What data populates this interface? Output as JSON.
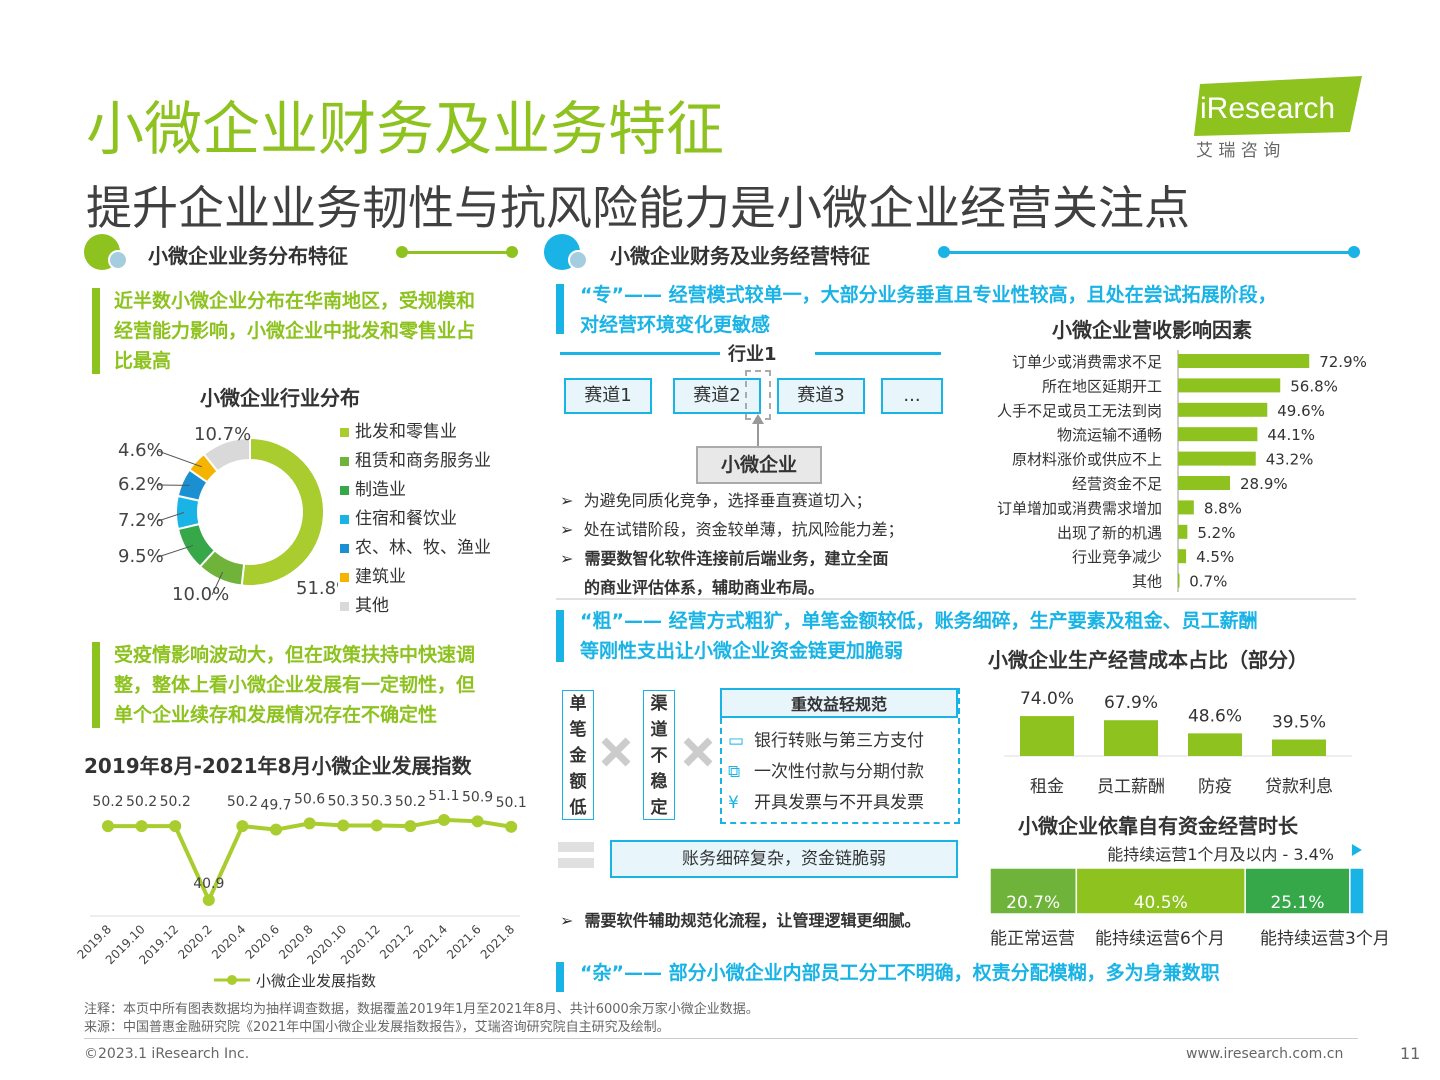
{
  "header": {
    "title": "小微企业财务及业务特征",
    "subtitle": "提升企业业务韧性与抗风险能力是小微企业经营关注点",
    "logo_text": "iResearch",
    "logo_cn": "艾 瑞 咨 询"
  },
  "left": {
    "section_title": "小微企业业务分布特征",
    "text1": [
      "近半数小微企业分布在华南地区，受规模和",
      "经营能力影响，小微企业中批发和零售业占",
      "比最高"
    ],
    "donut_title": "小微企业行业分布",
    "text2": [
      "受疫情影响波动大，但在政策扶持中快速调",
      "整，整体上看小微企业发展有一定韧性，但",
      "单个企业续存和发展情况存在不确定性"
    ],
    "line_title": "2019年8月-2021年8月小微企业发展指数"
  },
  "right": {
    "section_title": "小微企业财务及业务经营特征",
    "zhuan_text": [
      "“专”—— 经营模式较单一，大部分业务垂直且专业性较高，且处在尝试拓展阶段，",
      "对经营环境变化更敏感"
    ],
    "industry_label": "行业1",
    "tracks": [
      "赛道1",
      "赛道2",
      "赛道3",
      "..."
    ],
    "small_enterprise": "小微企业",
    "bullets1": [
      "为避免同质化竞争，选择垂直赛道切入；",
      "处在试错阶段，资金较单薄，抗风险能力差；",
      "需要数智化软件连接前后端业务，建立全面",
      "的商业评估体系，辅助商业布局。"
    ],
    "cu_text": [
      "“粗”—— 经营方式粗犷，单笔金额较低，账务细碎，生产要素及租金、员工薪酬",
      "等刚性支出让小微企业资金链更加脆弱"
    ],
    "vert1": [
      "单",
      "笔",
      "金",
      "额",
      "低"
    ],
    "vert2": [
      "渠",
      "道",
      "不",
      "稳",
      "定"
    ],
    "rule_title": "重效益轻规范",
    "rules": [
      "银行转账与第三方支付",
      "一次性付款与分期付款",
      "开具发票与不开具发票"
    ],
    "account_box": "账务细碎复杂，资金链脆弱",
    "bullet2": "需要软件辅助规范化流程，让管理逻辑更细腻。",
    "za_text": "“杂”—— 部分小微企业内部员工分工不明确，权责分配模糊，多为身兼数职"
  },
  "chart_data": [
    {
      "type": "pie",
      "title": "小微企业行业分布",
      "categories": [
        "批发和零售业",
        "租赁和商务服务业",
        "制造业",
        "住宿和餐饮业",
        "农、林、牧、渔业",
        "建筑业",
        "其他"
      ],
      "values": [
        51.8,
        10.0,
        9.5,
        7.2,
        6.2,
        4.6,
        10.7
      ],
      "labels": [
        "51.8%",
        "10.0%",
        "9.5%",
        "7.2%",
        "6.2%",
        "4.6%",
        "10.7%"
      ],
      "colors": [
        "#a9cc2f",
        "#6fb33a",
        "#36a84a",
        "#1ab3e6",
        "#1a8fd1",
        "#f5b400",
        "#d9d9d9"
      ]
    },
    {
      "type": "line",
      "title": "2019年8月-2021年8月小微企业发展指数",
      "x": [
        "2019.8",
        "2019.10",
        "2019.12",
        "2020.2",
        "2020.4",
        "2020.6",
        "2020.8",
        "2020.10",
        "2020.12",
        "2021.2",
        "2021.4",
        "2021.6",
        "2021.8"
      ],
      "series": [
        {
          "name": "小微企业发展指数",
          "values": [
            50.2,
            50.2,
            50.2,
            40.9,
            50.2,
            49.7,
            50.6,
            50.3,
            50.3,
            50.2,
            51.1,
            50.9,
            50.1
          ]
        }
      ],
      "ylim": [
        38,
        54
      ]
    },
    {
      "type": "bar",
      "title": "小微企业营收影响因素",
      "categories": [
        "订单少或消费需求不足",
        "所在地区延期开工",
        "人手不足或员工无法到岗",
        "物流运输不通畅",
        "原材料涨价或供应不上",
        "经营资金不足",
        "订单增加或消费需求增加",
        "出现了新的机遇",
        "行业竞争减少",
        "其他"
      ],
      "values": [
        72.9,
        56.8,
        49.6,
        44.1,
        43.2,
        28.9,
        8.8,
        5.2,
        4.5,
        0.7
      ],
      "labels": [
        "72.9%",
        "56.8%",
        "49.6%",
        "44.1%",
        "43.2%",
        "28.9%",
        "8.8%",
        "5.2%",
        "4.5%",
        "0.7%"
      ]
    },
    {
      "type": "bar",
      "title": "小微企业生产经营成本占比（部分）",
      "categories": [
        "租金",
        "员工薪酬",
        "防疫",
        "贷款利息"
      ],
      "values": [
        74.0,
        67.9,
        48.6,
        39.5
      ],
      "labels": [
        "74.0%",
        "67.9%",
        "48.6%",
        "39.5%"
      ]
    },
    {
      "type": "bar",
      "title": "小微企业依靠自有资金经营时长",
      "categories": [
        "能正常运营",
        "能持续运营6个月",
        "能持续运营3个月",
        "能持续运营1个月及以内"
      ],
      "values": [
        20.7,
        40.5,
        25.1,
        3.4
      ],
      "labels": [
        "20.7%",
        "40.5%",
        "25.1%",
        "能持续运营1个月及以内 - 3.4%"
      ],
      "colors": [
        "#6fb33a",
        "#8dc21f",
        "#36a84a",
        "#1ab3e6"
      ]
    }
  ],
  "footer": {
    "note": "注释：本页中所有图表数据均为抽样调查数据，数据覆盖2019年1月至2021年8月、共计6000余万家小微企业数据。",
    "source": "来源：中国普惠金融研究院《2021年中国小微企业发展指数报告》，艾瑞咨询研究院自主研究及绘制。",
    "copyright": "©2023.1 iResearch Inc.",
    "url": "www.iresearch.com.cn",
    "page": "11"
  }
}
